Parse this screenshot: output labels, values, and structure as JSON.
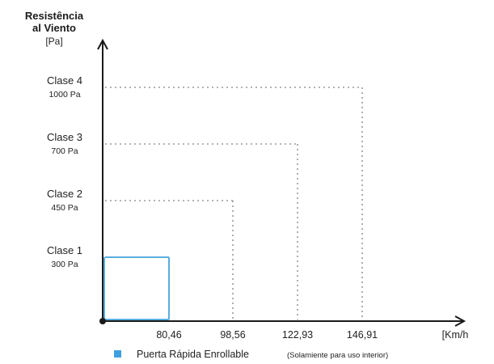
{
  "chart_data": {
    "type": "line",
    "ylabel": [
      "Resistência",
      "al Viento",
      "[Pa]"
    ],
    "xlabel": "[Km/h",
    "x_ticks": [
      "80,46",
      "98,56",
      "122,93",
      "146,91"
    ],
    "classes": [
      {
        "name": "Clase 1",
        "pressure_label": "300 Pa",
        "pressure_pa": 300,
        "speed_kmh": 80.46,
        "speed_label": "80,46",
        "style": "solid"
      },
      {
        "name": "Clase 2",
        "pressure_label": "450 Pa",
        "pressure_pa": 450,
        "speed_kmh": 98.56,
        "speed_label": "98,56",
        "style": "dotted"
      },
      {
        "name": "Clase 3",
        "pressure_label": "700 Pa",
        "pressure_pa": 700,
        "speed_kmh": 122.93,
        "speed_label": "122,93",
        "style": "dotted"
      },
      {
        "name": "Clase 4",
        "pressure_label": "1000 Pa",
        "pressure_pa": 1000,
        "speed_kmh": 146.91,
        "speed_label": "146,91",
        "style": "dotted"
      }
    ],
    "legend": {
      "label": "Puerta Rápida Enrollable",
      "note": "(Solamiente para uso interior)",
      "color": "#3fa0e0",
      "placement": "bottom"
    },
    "colors": {
      "axis": "#1a1a1a",
      "dotted": "#9a9a9a",
      "highlight": "#5aaee0"
    }
  }
}
